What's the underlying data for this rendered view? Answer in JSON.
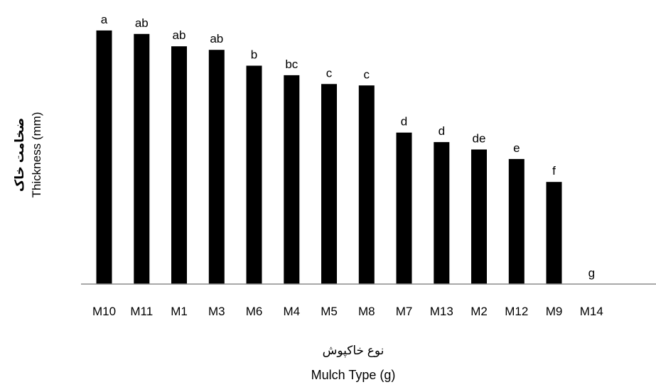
{
  "chart_data": {
    "type": "bar",
    "categories": [
      "M10",
      "M11",
      "M1",
      "M3",
      "M6",
      "M4",
      "M5",
      "M8",
      "M7",
      "M13",
      "M2",
      "M12",
      "M9",
      "M14"
    ],
    "values": [
      7.2,
      7.1,
      6.75,
      6.65,
      6.2,
      5.93,
      5.68,
      5.64,
      4.3,
      4.03,
      3.82,
      3.55,
      2.9,
      0
    ],
    "data_labels": [
      "a",
      "ab",
      "ab",
      "ab",
      "b",
      "bc",
      "c",
      "c",
      "d",
      "d",
      "de",
      "e",
      "f",
      "g"
    ],
    "ylabel_fa": "ضخامت خاک",
    "ylabel_en": "Thickness (mm)",
    "xlabel_fa": "نوع خاکپوش",
    "xlabel_en": "Mulch Type (g)",
    "ylim": [
      0,
      7.5
    ],
    "grid": false,
    "bar_color": "#000000"
  }
}
